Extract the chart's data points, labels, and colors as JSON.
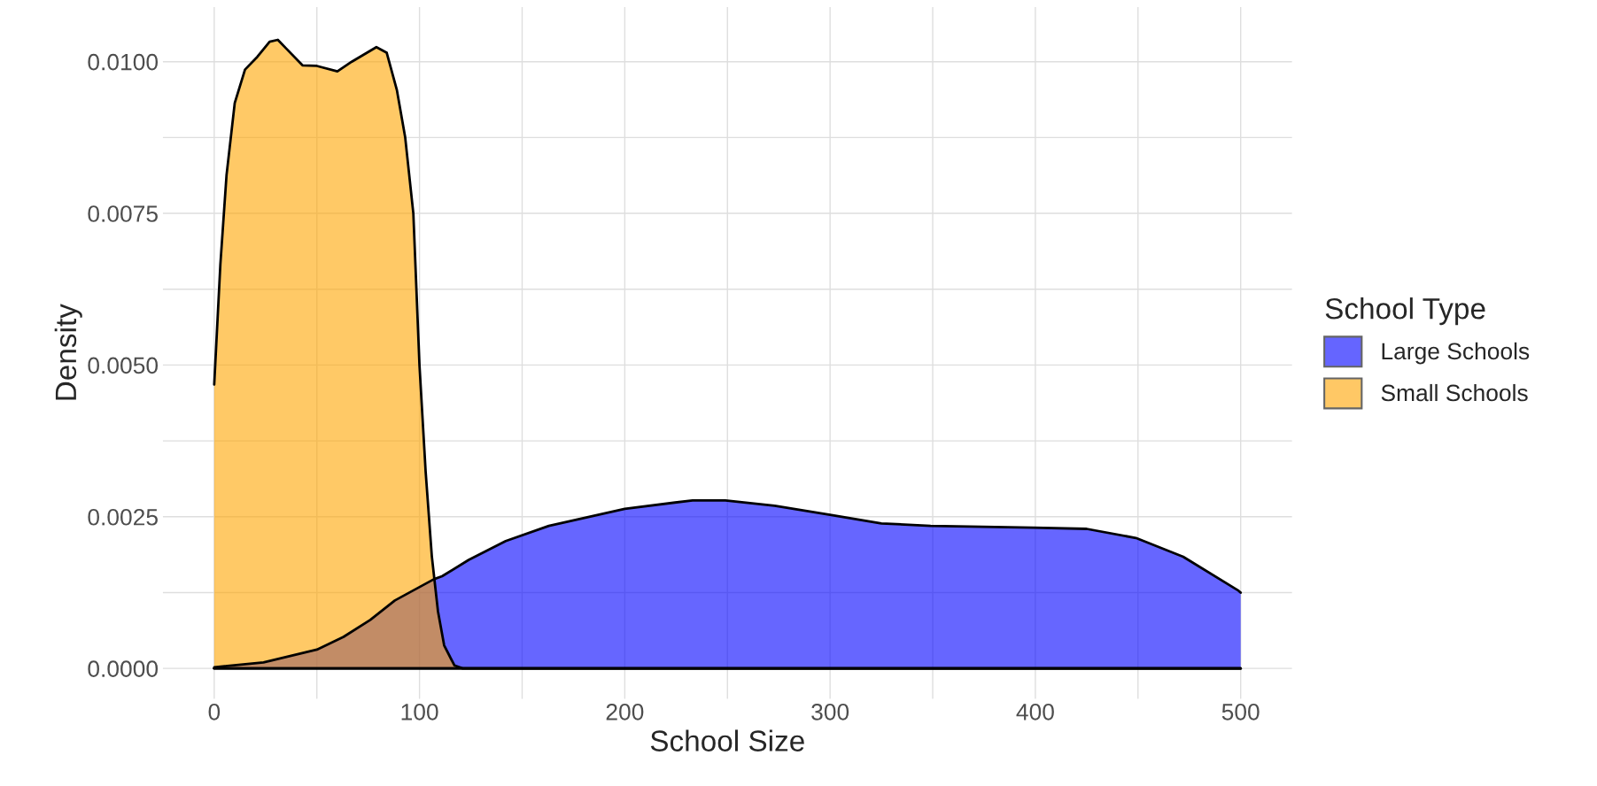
{
  "chart_data": {
    "type": "area",
    "xlabel": "School Size",
    "ylabel": "Density",
    "legend_title": "School Type",
    "legend": "right",
    "grid": true,
    "xlim": [
      -25,
      525
    ],
    "xticks": [
      0,
      {
        "value": 50,
        "label": null
      },
      100,
      {
        "value": 150,
        "label": null
      },
      200,
      {
        "value": 250,
        "label": null
      },
      300,
      {
        "value": 350,
        "label": null
      },
      400,
      {
        "value": 450,
        "label": null
      },
      500
    ],
    "ylim": [
      -0.0005,
      0.0109
    ],
    "yticks": [
      {
        "value": 0,
        "label": "0.0000"
      },
      {
        "value": 0.00125,
        "label": null
      },
      {
        "value": 0.0025,
        "label": "0.0025"
      },
      {
        "value": 0.00375,
        "label": null
      },
      {
        "value": 0.005,
        "label": "0.0050"
      },
      {
        "value": 0.00625,
        "label": null
      },
      {
        "value": 0.0075,
        "label": "0.0075"
      },
      {
        "value": 0.00875,
        "label": null
      },
      {
        "value": 0.01,
        "label": "0.0100"
      }
    ],
    "series": [
      {
        "name": "Large Schools",
        "color": "#0000ff",
        "x": [
          0,
          24,
          50,
          63,
          76,
          88,
          107,
          111,
          124,
          142,
          163,
          200,
          233,
          249,
          273,
          300,
          325,
          349,
          399,
          425,
          449,
          472,
          499,
          500
        ],
        "values": [
          2e-05,
          0.0001,
          0.00031,
          0.00052,
          0.0008,
          0.00112,
          0.00147,
          0.00152,
          0.00179,
          0.0021,
          0.00235,
          0.00263,
          0.00277,
          0.00277,
          0.00268,
          0.00253,
          0.00239,
          0.00235,
          0.00232,
          0.0023,
          0.00215,
          0.00184,
          0.00128,
          0.00125
        ]
      },
      {
        "name": "Small Schools",
        "color": "#ffa500",
        "x": [
          0,
          3,
          6,
          10,
          15,
          21,
          27,
          31,
          35,
          43,
          50,
          60,
          67,
          79,
          84,
          89,
          93,
          97,
          100,
          103,
          106,
          109,
          112,
          117,
          121,
          200,
          300,
          400,
          500
        ],
        "values": [
          0.00468,
          0.00666,
          0.00813,
          0.00932,
          0.00987,
          0.01008,
          0.01033,
          0.01036,
          0.01022,
          0.00994,
          0.00993,
          0.00984,
          0.01,
          0.01024,
          0.01015,
          0.00953,
          0.00876,
          0.0075,
          0.00499,
          0.00324,
          0.00185,
          0.00094,
          0.00038,
          5e-05,
          0,
          0,
          0,
          0,
          0
        ]
      }
    ]
  }
}
